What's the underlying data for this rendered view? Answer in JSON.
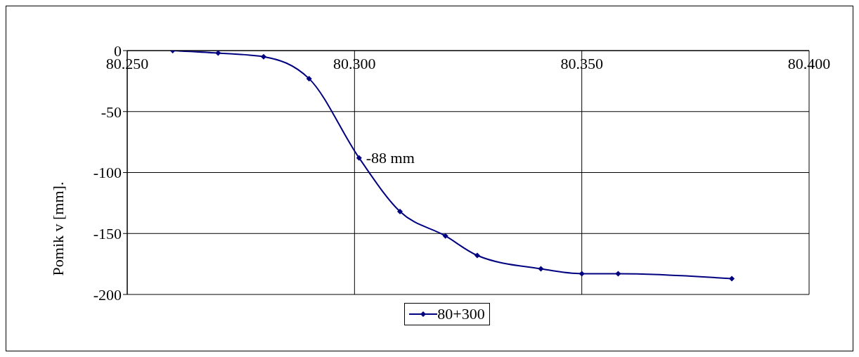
{
  "chart_data": {
    "type": "line",
    "ylabel": "Pomik v [mm].",
    "x": [
      80.26,
      80.27,
      80.28,
      80.29,
      80.301,
      80.31,
      80.32,
      80.327,
      80.341,
      80.35,
      80.358,
      80.383
    ],
    "series": [
      {
        "name": "80+300",
        "color": "#000080",
        "values": [
          0,
          -2,
          -5,
          -23,
          -88,
          -132,
          -152,
          -168,
          -179,
          -183,
          -183,
          -187
        ]
      }
    ],
    "xlim": [
      80.25,
      80.4
    ],
    "xticks": [
      {
        "value": 80.25,
        "label": "80.250"
      },
      {
        "value": 80.3,
        "label": "80.300"
      },
      {
        "value": 80.35,
        "label": "80.350"
      },
      {
        "value": 80.4,
        "label": "80.400"
      }
    ],
    "ylim": [
      -200,
      0
    ],
    "yticks": [
      0,
      -50,
      -100,
      -150,
      -200
    ],
    "annotations": [
      {
        "text": "-88 mm",
        "x": 80.301,
        "y": -88
      }
    ],
    "grid": true,
    "legend": "bottom",
    "marker": "diamond",
    "line_style": "solid"
  }
}
